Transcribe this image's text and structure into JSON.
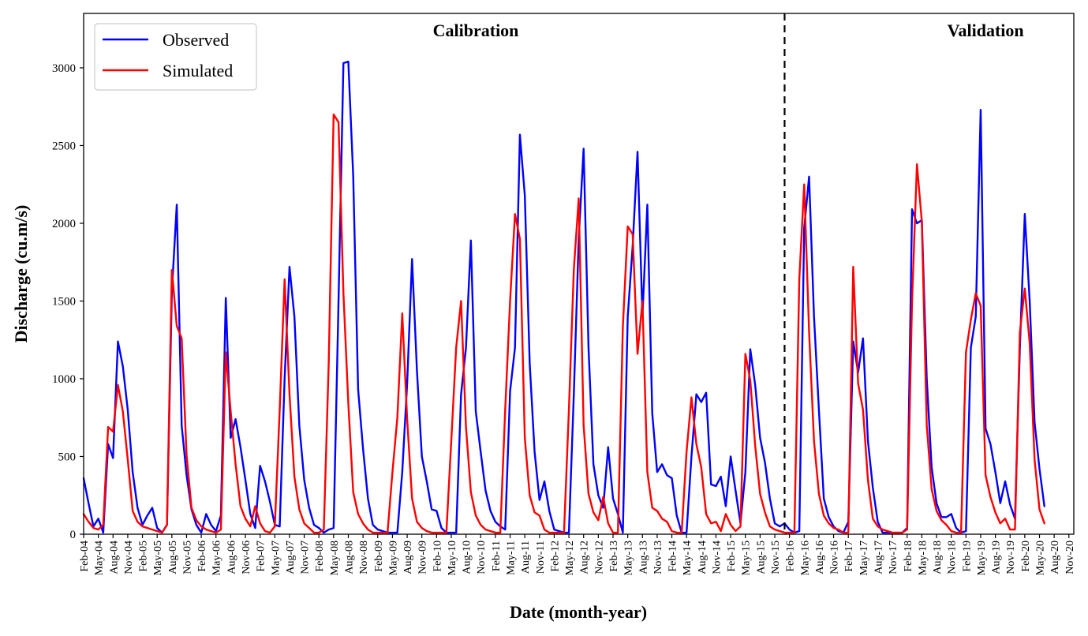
{
  "chart_data": {
    "type": "line",
    "xlabel": "Date (month-year)",
    "ylabel": "Discharge (cu.m/s)",
    "ylim": [
      0,
      3350
    ],
    "yticks": [
      0,
      500,
      1000,
      1500,
      2000,
      2500,
      3000
    ],
    "x_start": "Feb-04",
    "x_end": "Dec-20",
    "x_tick_labels": [
      "Feb-04",
      "May-04",
      "Aug-04",
      "Nov-04",
      "Feb-05",
      "May-05",
      "Aug-05",
      "Nov-05",
      "Feb-06",
      "May-06",
      "Aug-06",
      "Nov-06",
      "Feb-07",
      "May-07",
      "Aug-07",
      "Nov-07",
      "Feb-08",
      "May-08",
      "Aug-08",
      "Nov-08",
      "Feb-09",
      "May-09",
      "Aug-09",
      "Nov-09",
      "Feb-10",
      "May-10",
      "Aug-10",
      "Nov-10",
      "Feb-11",
      "May-11",
      "Aug-11",
      "Nov-11",
      "Feb-12",
      "May-12",
      "Aug-12",
      "Nov-12",
      "Feb-13",
      "May-13",
      "Aug-13",
      "Nov-13",
      "Feb-14",
      "May-14",
      "Aug-14",
      "Nov-14",
      "Feb-15",
      "May-15",
      "Aug-15",
      "Nov-15",
      "Feb-16",
      "May-16",
      "Aug-16",
      "Nov-16",
      "Feb-17",
      "May-17",
      "Aug-17",
      "Nov-17",
      "Feb-18",
      "May-18",
      "Aug-18",
      "Nov-18",
      "Feb-19",
      "May-19",
      "Aug-19",
      "Nov-19",
      "Feb-20",
      "May-20",
      "Aug-20",
      "Nov-20"
    ],
    "grid": false,
    "legend_position": "top-left",
    "annotations": [
      {
        "text": "Calibration",
        "at": "Oct-10"
      },
      {
        "text": "Validation",
        "at": "Jun-19"
      }
    ],
    "divider": {
      "at": "Jan-16",
      "style": "dashed"
    },
    "series": [
      {
        "name": "Observed",
        "color": "#0000ff",
        "values": [
          360,
          200,
          50,
          100,
          10,
          580,
          490,
          1240,
          1080,
          800,
          400,
          170,
          60,
          120,
          170,
          40,
          10,
          60,
          1560,
          2120,
          700,
          380,
          160,
          60,
          10,
          130,
          60,
          20,
          120,
          1520,
          620,
          740,
          560,
          350,
          130,
          40,
          440,
          340,
          210,
          60,
          50,
          1000,
          1720,
          1400,
          700,
          350,
          170,
          60,
          40,
          10,
          30,
          40,
          1500,
          3030,
          3040,
          2300,
          930,
          550,
          230,
          60,
          30,
          20,
          10,
          10,
          10,
          400,
          970,
          1770,
          1050,
          500,
          340,
          160,
          150,
          40,
          10,
          10,
          10,
          900,
          1200,
          1890,
          790,
          530,
          280,
          150,
          80,
          50,
          30,
          920,
          1200,
          2570,
          2180,
          1100,
          530,
          220,
          340,
          150,
          30,
          20,
          10,
          10,
          900,
          1900,
          2480,
          1200,
          450,
          250,
          170,
          560,
          230,
          130,
          10,
          1400,
          1850,
          2460,
          1400,
          2120,
          780,
          400,
          450,
          380,
          360,
          120,
          10,
          10,
          500,
          900,
          850,
          910,
          320,
          310,
          370,
          180,
          500,
          280,
          70,
          400,
          1190,
          960,
          620,
          460,
          230,
          70,
          50,
          70,
          30,
          10,
          20,
          1970,
          2300,
          1400,
          800,
          230,
          110,
          50,
          20,
          10,
          80,
          1240,
          1040,
          1260,
          600,
          300,
          80,
          10,
          10,
          10,
          10,
          10,
          40,
          2090,
          2000,
          2020,
          1000,
          430,
          200,
          110,
          110,
          130,
          40,
          10,
          20,
          1200,
          1400,
          2730,
          680,
          580,
          400,
          200,
          340,
          190,
          100,
          1200,
          2060,
          1500,
          720,
          420,
          180
        ]
      },
      {
        "name": "Simulated",
        "color": "#ff0000",
        "values": [
          130,
          80,
          40,
          30,
          60,
          690,
          660,
          960,
          790,
          480,
          150,
          80,
          50,
          40,
          30,
          20,
          10,
          60,
          1700,
          1340,
          1260,
          510,
          170,
          90,
          50,
          30,
          20,
          10,
          30,
          1170,
          790,
          450,
          180,
          100,
          50,
          180,
          70,
          20,
          10,
          50,
          800,
          1640,
          900,
          370,
          160,
          70,
          40,
          10,
          10,
          30,
          1100,
          2700,
          2650,
          1550,
          840,
          270,
          130,
          70,
          30,
          10,
          10,
          10,
          10,
          400,
          750,
          1420,
          740,
          230,
          80,
          40,
          20,
          10,
          10,
          10,
          10,
          600,
          1200,
          1500,
          690,
          270,
          120,
          60,
          30,
          20,
          10,
          10,
          800,
          1500,
          2060,
          1900,
          620,
          250,
          140,
          120,
          30,
          10,
          10,
          10,
          10,
          800,
          1700,
          2160,
          700,
          260,
          140,
          90,
          240,
          70,
          10,
          10,
          1330,
          1980,
          1930,
          1160,
          1500,
          400,
          170,
          150,
          100,
          80,
          20,
          10,
          10,
          530,
          880,
          580,
          430,
          130,
          70,
          80,
          20,
          130,
          60,
          20,
          50,
          1160,
          990,
          570,
          260,
          140,
          50,
          30,
          20,
          10,
          10,
          10,
          1640,
          2250,
          1300,
          600,
          260,
          120,
          70,
          40,
          30,
          10,
          10,
          1720,
          970,
          800,
          350,
          100,
          50,
          30,
          20,
          10,
          10,
          10,
          30,
          1500,
          2380,
          2010,
          700,
          290,
          150,
          90,
          60,
          20,
          10,
          10,
          1170,
          1380,
          1550,
          1470,
          380,
          240,
          140,
          70,
          100,
          30,
          30,
          1300,
          1580,
          1230,
          480,
          160,
          70
        ]
      }
    ]
  }
}
